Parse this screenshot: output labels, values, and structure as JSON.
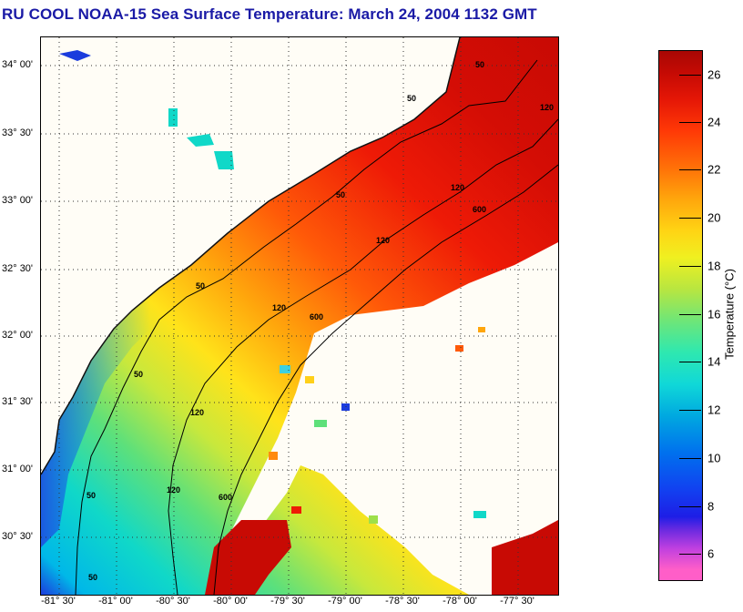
{
  "title": "RU COOL  NOAA-15  Sea Surface Temperature:  March 24, 2004 1132 GMT",
  "map": {
    "lat_labels": [
      "34° 00'",
      "33° 30'",
      "33° 00'",
      "32° 30'",
      "32° 00'",
      "31° 30'",
      "31° 00'",
      "30° 30'"
    ],
    "lon_labels": [
      "-81° 30'",
      "-81° 00'",
      "-80° 30'",
      "-80° 00'",
      "-79° 30'",
      "-79° 00'",
      "-78° 30'",
      "-78° 00'",
      "-77° 30'"
    ],
    "isobath_labels": [
      "50",
      "50",
      "50",
      "50",
      "50",
      "50",
      "50",
      "120",
      "120",
      "120",
      "120",
      "120",
      "120",
      "600",
      "600",
      "600"
    ]
  },
  "colorbar": {
    "title": "Temperature (°C)",
    "ticks": [
      "26",
      "24",
      "22",
      "20",
      "18",
      "16",
      "14",
      "12",
      "10",
      "8",
      "6"
    ]
  },
  "colors": {
    "title": "#1a1aa6",
    "land": "#fffdf6",
    "contour": "#000000"
  }
}
